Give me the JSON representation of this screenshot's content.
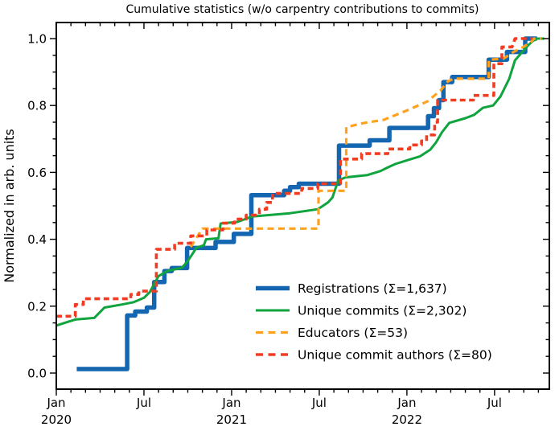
{
  "chart_data": {
    "type": "line",
    "title": "Cumulative statistics (w/o carpentry contributions to commits)",
    "xlabel": "",
    "ylabel": "Normalized in arb. units",
    "grid": false,
    "legend_position": "lower right",
    "x_axis": {
      "unit": "months since 2020-01",
      "range_months": [
        0,
        33.75
      ],
      "major_ticks": [
        {
          "m": 0,
          "label": "Jan",
          "year": "2020"
        },
        {
          "m": 6,
          "label": "Jul",
          "year": ""
        },
        {
          "m": 12,
          "label": "Jan",
          "year": "2021"
        },
        {
          "m": 18,
          "label": "Jul",
          "year": ""
        },
        {
          "m": 24,
          "label": "Jan",
          "year": "2022"
        },
        {
          "m": 30,
          "label": "Jul",
          "year": ""
        }
      ],
      "minor_tick_every_months": 1
    },
    "y_axis": {
      "range": [
        -0.048,
        1.043
      ],
      "major_ticks": [
        {
          "v": 0.0,
          "label": "0.0"
        },
        {
          "v": 0.2,
          "label": "0.2"
        },
        {
          "v": 0.4,
          "label": "0.4"
        },
        {
          "v": 0.6,
          "label": "0.6"
        },
        {
          "v": 0.8,
          "label": "0.8"
        },
        {
          "v": 1.0,
          "label": "1.0"
        }
      ],
      "minor_tick_every": 0.05
    },
    "series": [
      {
        "name": "registrations",
        "label": "Registrations  (Σ=1,637)",
        "total": 1637,
        "color": "#1566b0",
        "style": "solid",
        "width": 5.5,
        "points": [
          [
            1.4,
            0.012
          ],
          [
            4.85,
            0.012
          ],
          [
            4.85,
            0.172
          ],
          [
            5.4,
            0.172
          ],
          [
            5.4,
            0.184
          ],
          [
            6.2,
            0.184
          ],
          [
            6.2,
            0.196
          ],
          [
            6.7,
            0.196
          ],
          [
            6.7,
            0.272
          ],
          [
            7.4,
            0.272
          ],
          [
            7.4,
            0.305
          ],
          [
            7.9,
            0.305
          ],
          [
            7.9,
            0.314
          ],
          [
            8.95,
            0.314
          ],
          [
            8.95,
            0.374
          ],
          [
            10.9,
            0.374
          ],
          [
            10.9,
            0.392
          ],
          [
            12.15,
            0.392
          ],
          [
            12.15,
            0.416
          ],
          [
            13.35,
            0.416
          ],
          [
            13.35,
            0.532
          ],
          [
            15.6,
            0.532
          ],
          [
            15.6,
            0.545
          ],
          [
            16.0,
            0.545
          ],
          [
            16.0,
            0.556
          ],
          [
            16.6,
            0.556
          ],
          [
            16.6,
            0.566
          ],
          [
            19.35,
            0.566
          ],
          [
            19.35,
            0.68
          ],
          [
            21.45,
            0.68
          ],
          [
            21.45,
            0.696
          ],
          [
            22.8,
            0.696
          ],
          [
            22.8,
            0.733
          ],
          [
            25.45,
            0.733
          ],
          [
            25.45,
            0.768
          ],
          [
            25.85,
            0.768
          ],
          [
            25.85,
            0.792
          ],
          [
            26.2,
            0.792
          ],
          [
            26.2,
            0.816
          ],
          [
            26.5,
            0.816
          ],
          [
            26.5,
            0.87
          ],
          [
            27.1,
            0.87
          ],
          [
            27.1,
            0.885
          ],
          [
            29.6,
            0.885
          ],
          [
            29.6,
            0.937
          ],
          [
            30.85,
            0.937
          ],
          [
            30.85,
            0.96
          ],
          [
            32.1,
            0.96
          ],
          [
            32.1,
            1.0
          ],
          [
            32.9,
            1.0
          ]
        ]
      },
      {
        "name": "unique-commits",
        "label": "Unique commits (Σ=2,302)",
        "total": 2302,
        "color": "#0fa43e",
        "style": "solid",
        "width": 3,
        "points": [
          [
            0,
            0.142
          ],
          [
            0.7,
            0.152
          ],
          [
            1.3,
            0.16
          ],
          [
            2.6,
            0.165
          ],
          [
            3.3,
            0.196
          ],
          [
            4.5,
            0.205
          ],
          [
            5.3,
            0.212
          ],
          [
            6.0,
            0.225
          ],
          [
            6.4,
            0.242
          ],
          [
            7.0,
            0.29
          ],
          [
            7.6,
            0.305
          ],
          [
            8.6,
            0.315
          ],
          [
            9.0,
            0.335
          ],
          [
            9.6,
            0.375
          ],
          [
            10.1,
            0.382
          ],
          [
            10.25,
            0.4
          ],
          [
            11.1,
            0.403
          ],
          [
            11.25,
            0.447
          ],
          [
            12.4,
            0.452
          ],
          [
            13.4,
            0.468
          ],
          [
            16.0,
            0.478
          ],
          [
            17.9,
            0.49
          ],
          [
            18.6,
            0.51
          ],
          [
            18.9,
            0.525
          ],
          [
            19.3,
            0.576
          ],
          [
            19.8,
            0.585
          ],
          [
            21.3,
            0.592
          ],
          [
            22.2,
            0.604
          ],
          [
            22.6,
            0.613
          ],
          [
            23.2,
            0.625
          ],
          [
            24.0,
            0.636
          ],
          [
            24.9,
            0.648
          ],
          [
            25.6,
            0.668
          ],
          [
            26.0,
            0.69
          ],
          [
            26.4,
            0.72
          ],
          [
            26.9,
            0.748
          ],
          [
            28.0,
            0.762
          ],
          [
            28.6,
            0.772
          ],
          [
            29.2,
            0.793
          ],
          [
            29.9,
            0.8
          ],
          [
            30.4,
            0.827
          ],
          [
            31.0,
            0.88
          ],
          [
            31.4,
            0.935
          ],
          [
            31.7,
            0.95
          ],
          [
            32.3,
            0.98
          ],
          [
            32.6,
            0.992
          ],
          [
            32.9,
            1.0
          ],
          [
            33.4,
            1.0
          ]
        ]
      },
      {
        "name": "educators",
        "label": "Educators (Σ=53)",
        "total": 53,
        "color": "#ffa11d",
        "style": "dashed",
        "dash": "8 5.5",
        "width": 3.2,
        "points": [
          [
            9.2,
            0.377
          ],
          [
            10.0,
            0.432
          ],
          [
            17.95,
            0.432
          ],
          [
            17.95,
            0.545
          ],
          [
            19.85,
            0.545
          ],
          [
            19.85,
            0.735
          ],
          [
            21.0,
            0.747
          ],
          [
            22.4,
            0.757
          ],
          [
            24.0,
            0.785
          ],
          [
            25.4,
            0.812
          ],
          [
            26.3,
            0.845
          ],
          [
            26.8,
            0.872
          ],
          [
            27.2,
            0.88
          ],
          [
            29.6,
            0.88
          ],
          [
            29.6,
            0.937
          ],
          [
            30.6,
            0.94
          ],
          [
            31.3,
            0.96
          ],
          [
            32.0,
            0.976
          ],
          [
            32.5,
            0.99
          ],
          [
            32.7,
            1.0
          ],
          [
            33.2,
            1.0
          ]
        ]
      },
      {
        "name": "unique-commit-authors",
        "label": "Unique commit authors (Σ=80)",
        "total": 80,
        "color": "#f23c22",
        "style": "dashed",
        "dash": "7 4.5",
        "width": 3.6,
        "points": [
          [
            0,
            0.17
          ],
          [
            1.3,
            0.17
          ],
          [
            1.3,
            0.205
          ],
          [
            1.85,
            0.205
          ],
          [
            1.85,
            0.222
          ],
          [
            5.1,
            0.222
          ],
          [
            5.1,
            0.235
          ],
          [
            5.65,
            0.235
          ],
          [
            5.65,
            0.245
          ],
          [
            6.85,
            0.245
          ],
          [
            6.85,
            0.37
          ],
          [
            8.1,
            0.37
          ],
          [
            8.1,
            0.388
          ],
          [
            9.2,
            0.388
          ],
          [
            9.2,
            0.41
          ],
          [
            10.3,
            0.41
          ],
          [
            10.3,
            0.428
          ],
          [
            11.4,
            0.428
          ],
          [
            11.4,
            0.448
          ],
          [
            12.2,
            0.448
          ],
          [
            12.2,
            0.46
          ],
          [
            13.0,
            0.46
          ],
          [
            13.0,
            0.472
          ],
          [
            13.9,
            0.472
          ],
          [
            13.9,
            0.49
          ],
          [
            14.4,
            0.49
          ],
          [
            14.4,
            0.51
          ],
          [
            14.8,
            0.51
          ],
          [
            14.8,
            0.537
          ],
          [
            16.8,
            0.537
          ],
          [
            16.8,
            0.552
          ],
          [
            17.9,
            0.552
          ],
          [
            17.9,
            0.566
          ],
          [
            19.45,
            0.566
          ],
          [
            19.45,
            0.64
          ],
          [
            20.9,
            0.64
          ],
          [
            20.9,
            0.656
          ],
          [
            22.7,
            0.656
          ],
          [
            22.7,
            0.67
          ],
          [
            24.2,
            0.67
          ],
          [
            24.2,
            0.682
          ],
          [
            25.0,
            0.682
          ],
          [
            25.0,
            0.694
          ],
          [
            25.35,
            0.694
          ],
          [
            25.35,
            0.712
          ],
          [
            25.9,
            0.712
          ],
          [
            25.9,
            0.75
          ],
          [
            26.1,
            0.75
          ],
          [
            26.1,
            0.816
          ],
          [
            28.55,
            0.816
          ],
          [
            28.55,
            0.83
          ],
          [
            29.95,
            0.83
          ],
          [
            29.95,
            0.925
          ],
          [
            30.5,
            0.925
          ],
          [
            30.5,
            0.975
          ],
          [
            31.2,
            0.975
          ],
          [
            31.4,
            1.0
          ],
          [
            32.6,
            1.0
          ]
        ]
      }
    ]
  }
}
